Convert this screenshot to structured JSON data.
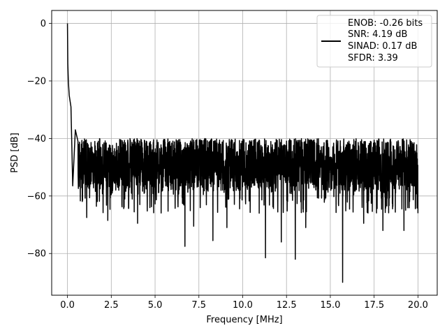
{
  "chart_data": {
    "type": "line",
    "xlabel": "Frequency [MHz]",
    "ylabel": "PSD [dB]",
    "xlim": [
      -0.9,
      21.1
    ],
    "ylim": [
      -94.5,
      4.5
    ],
    "xticks": [
      0.0,
      2.5,
      5.0,
      7.5,
      10.0,
      12.5,
      15.0,
      17.5,
      20.0
    ],
    "xtick_labels": [
      "0.0",
      "2.5",
      "5.0",
      "7.5",
      "10.0",
      "12.5",
      "15.0",
      "17.5",
      "20.0"
    ],
    "yticks": [
      0,
      -20,
      -40,
      -60,
      -80
    ],
    "ytick_labels": [
      "0",
      "−20",
      "−40",
      "−60",
      "−80"
    ],
    "grid": true,
    "legend_position": "upper-right",
    "legend": [
      "ENOB: -0.26 bits",
      "SNR: 4.19 dB",
      "SINAD: 0.17 dB",
      "SFDR: 3.39"
    ],
    "series": [
      {
        "color": "#000000",
        "noise_floor_dB": -50,
        "noise_band_dB": [
          -60,
          -40
        ],
        "peak": {
          "x": 0.0,
          "y": 0.0
        },
        "decay": [
          {
            "x": 0.0,
            "y": 0.0
          },
          {
            "x": 0.02,
            "y": -14
          },
          {
            "x": 0.05,
            "y": -20
          },
          {
            "x": 0.1,
            "y": -25
          },
          {
            "x": 0.2,
            "y": -29
          },
          {
            "x": 0.3,
            "y": -33
          },
          {
            "x": 0.45,
            "y": -37
          },
          {
            "x": 0.6,
            "y": -41
          }
        ],
        "dips": [
          {
            "x": 0.35,
            "y": -56.5
          },
          {
            "x": 1.1,
            "y": -67.5
          },
          {
            "x": 2.3,
            "y": -68.5
          },
          {
            "x": 4.0,
            "y": -69.5
          },
          {
            "x": 6.7,
            "y": -77.5
          },
          {
            "x": 7.2,
            "y": -70.5
          },
          {
            "x": 8.3,
            "y": -75.5
          },
          {
            "x": 9.1,
            "y": -71.0
          },
          {
            "x": 11.3,
            "y": -81.5
          },
          {
            "x": 12.2,
            "y": -76.0
          },
          {
            "x": 13.0,
            "y": -82.0
          },
          {
            "x": 13.6,
            "y": -71.0
          },
          {
            "x": 15.7,
            "y": -90.0
          },
          {
            "x": 16.9,
            "y": -69.5
          },
          {
            "x": 18.0,
            "y": -72.0
          },
          {
            "x": 19.2,
            "y": -72.0
          },
          {
            "x": 20.0,
            "y": -66.0
          }
        ],
        "x_end": 20.0
      }
    ]
  }
}
